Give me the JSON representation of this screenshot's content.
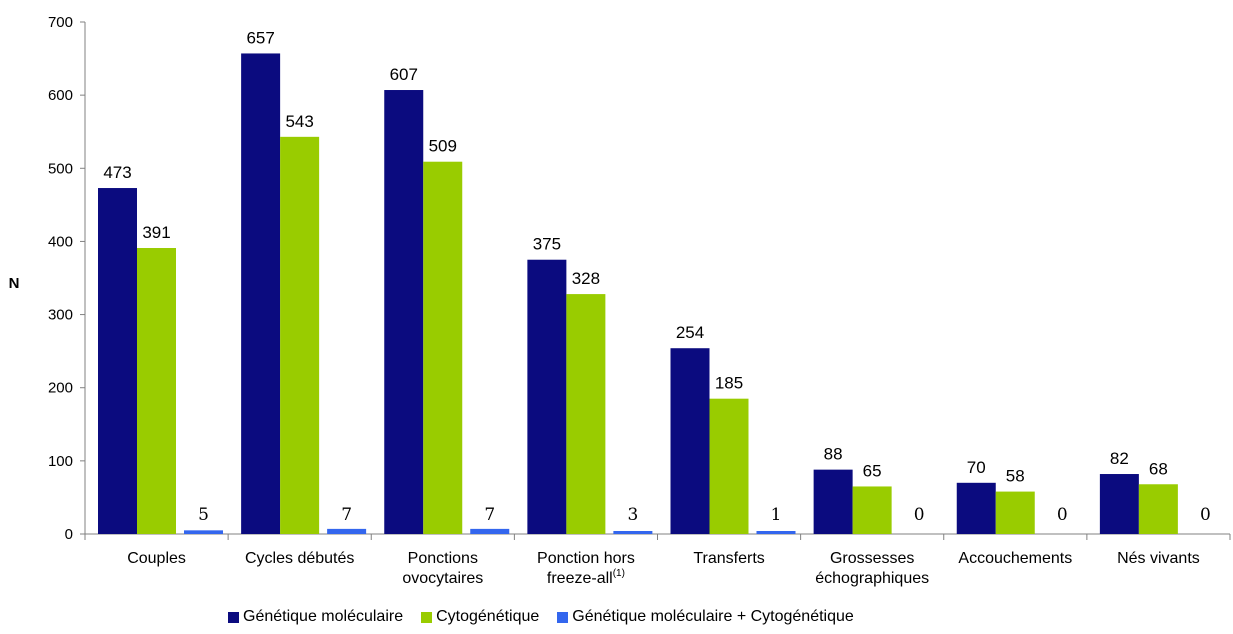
{
  "chart_data": {
    "type": "bar",
    "ylabel": "N",
    "xlabel": "",
    "ylim": [
      0,
      700
    ],
    "yticks": [
      0,
      100,
      200,
      300,
      400,
      500,
      600,
      700
    ],
    "grid": false,
    "legend_position": "bottom",
    "categories": [
      [
        "Couples"
      ],
      [
        "Cycles débutés"
      ],
      [
        "Ponctions",
        "ovocytaires"
      ],
      [
        "Ponction hors",
        "freeze-all"
      ],
      [
        "Transferts"
      ],
      [
        "Grossesses",
        "échographiques"
      ],
      [
        "Accouchements"
      ],
      [
        "Nés vivants"
      ]
    ],
    "category_footnotes": [
      "",
      "",
      "",
      "(1)",
      "",
      "",
      "",
      ""
    ],
    "series": [
      {
        "name": "Génétique moléculaire",
        "color": "#0b0b7f",
        "values": [
          473,
          657,
          607,
          375,
          254,
          88,
          70,
          82
        ]
      },
      {
        "name": "Cytogénétique",
        "color": "#99cc00",
        "values": [
          391,
          543,
          509,
          328,
          185,
          65,
          58,
          68
        ]
      },
      {
        "name": "Génétique moléculaire + Cytogénétique",
        "color": "#3366ee",
        "values": [
          5,
          7,
          7,
          3,
          1,
          0,
          0,
          0
        ]
      }
    ]
  }
}
